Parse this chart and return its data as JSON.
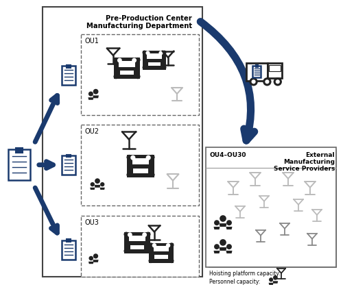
{
  "title_line1": "Pre-Production Center",
  "title_line2": "Manufacturing Department",
  "ou1_label": "OU1",
  "ou2_label": "OU2",
  "ou3_label": "OU3",
  "ext_label": "OU4–OU30",
  "ext_title_line1": "External",
  "ext_title_line2": "Manufacturing",
  "ext_title_line3": "Service Providers",
  "legend_hoisting": "Hoisting platform capacity:",
  "legend_personnel": "Personnel capacity:",
  "blue": "#1a3a6e",
  "dark": "#222222",
  "gray": "#999999",
  "lightgray": "#bbbbbb",
  "bg": "#ffffff"
}
